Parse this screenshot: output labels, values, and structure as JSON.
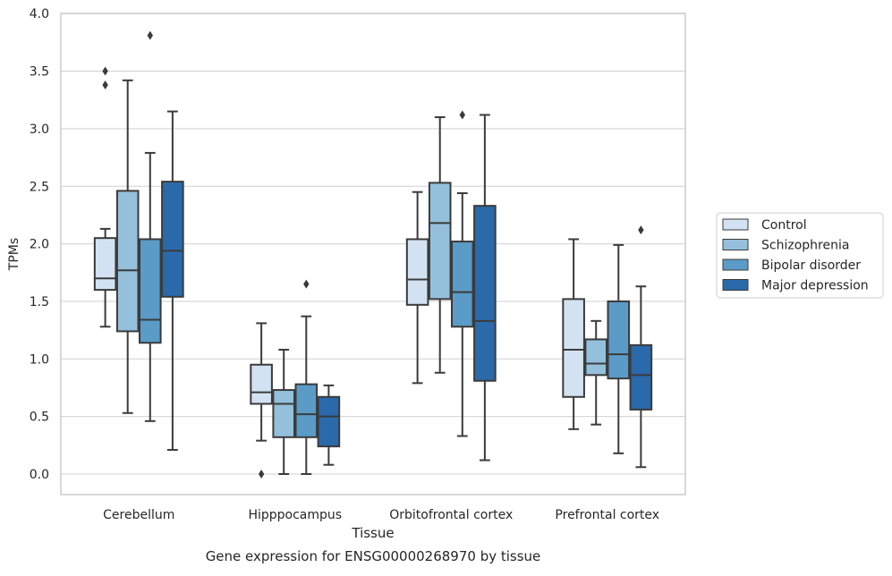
{
  "caption": "Gene expression for ENSG00000268970 by tissue",
  "chart_data": {
    "type": "box",
    "xlabel": "Tissue",
    "ylabel": "TPMs",
    "ylim": [
      -0.18,
      4.0
    ],
    "yticks": [
      0.0,
      0.5,
      1.0,
      1.5,
      2.0,
      2.5,
      3.0,
      3.5,
      4.0
    ],
    "grid": "horizontal",
    "legend_position": "right",
    "categories": [
      "Cerebellum",
      "Hipppocampus",
      "Orbitofrontal cortex",
      "Prefrontal cortex"
    ],
    "series": [
      {
        "name": "Control",
        "color": "#d3e2f2",
        "boxes": [
          {
            "whislo": 1.28,
            "q1": 1.6,
            "med": 1.7,
            "q3": 2.05,
            "whishi": 2.13,
            "fliers": [
              3.38,
              3.5
            ]
          },
          {
            "whislo": 0.29,
            "q1": 0.61,
            "med": 0.71,
            "q3": 0.95,
            "whishi": 1.31,
            "fliers": [
              0.0
            ]
          },
          {
            "whislo": 0.79,
            "q1": 1.47,
            "med": 1.69,
            "q3": 2.04,
            "whishi": 2.45,
            "fliers": []
          },
          {
            "whislo": 0.39,
            "q1": 0.67,
            "med": 1.08,
            "q3": 1.52,
            "whishi": 2.04,
            "fliers": []
          }
        ]
      },
      {
        "name": "Schizophrenia",
        "color": "#94c0dc",
        "boxes": [
          {
            "whislo": 0.53,
            "q1": 1.24,
            "med": 1.77,
            "q3": 2.46,
            "whishi": 3.42,
            "fliers": []
          },
          {
            "whislo": 0.0,
            "q1": 0.32,
            "med": 0.61,
            "q3": 0.73,
            "whishi": 1.08,
            "fliers": []
          },
          {
            "whislo": 0.88,
            "q1": 1.52,
            "med": 2.18,
            "q3": 2.53,
            "whishi": 3.1,
            "fliers": []
          },
          {
            "whislo": 0.43,
            "q1": 0.86,
            "med": 0.96,
            "q3": 1.17,
            "whishi": 1.33,
            "fliers": []
          }
        ]
      },
      {
        "name": "Bipolar disorder",
        "color": "#5a9bc8",
        "boxes": [
          {
            "whislo": 0.46,
            "q1": 1.14,
            "med": 1.34,
            "q3": 2.04,
            "whishi": 2.79,
            "fliers": [
              3.81
            ]
          },
          {
            "whislo": 0.0,
            "q1": 0.32,
            "med": 0.52,
            "q3": 0.78,
            "whishi": 1.37,
            "fliers": [
              1.65
            ]
          },
          {
            "whislo": 0.33,
            "q1": 1.28,
            "med": 1.58,
            "q3": 2.02,
            "whishi": 2.44,
            "fliers": [
              3.12
            ]
          },
          {
            "whislo": 0.18,
            "q1": 0.83,
            "med": 1.04,
            "q3": 1.5,
            "whishi": 1.99,
            "fliers": []
          }
        ]
      },
      {
        "name": "Major depression",
        "color": "#2a6aab",
        "boxes": [
          {
            "whislo": 0.21,
            "q1": 1.54,
            "med": 1.94,
            "q3": 2.54,
            "whishi": 3.15,
            "fliers": []
          },
          {
            "whislo": 0.08,
            "q1": 0.24,
            "med": 0.5,
            "q3": 0.67,
            "whishi": 0.77,
            "fliers": []
          },
          {
            "whislo": 0.12,
            "q1": 0.81,
            "med": 1.33,
            "q3": 2.33,
            "whishi": 3.12,
            "fliers": []
          },
          {
            "whislo": 0.06,
            "q1": 0.56,
            "med": 0.86,
            "q3": 1.12,
            "whishi": 1.63,
            "fliers": [
              2.12
            ]
          }
        ]
      }
    ]
  }
}
